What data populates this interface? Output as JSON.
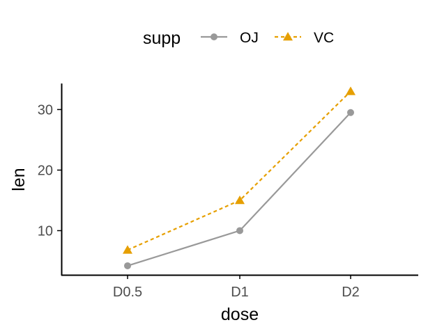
{
  "chart_data": {
    "type": "line",
    "title": "",
    "xlabel": "dose",
    "ylabel": "len",
    "categories": [
      "D0.5",
      "D1",
      "D2"
    ],
    "yticks": [
      10,
      20,
      30
    ],
    "ylim": [
      2.7,
      34.3
    ],
    "grid": false,
    "legend": {
      "title": "supp",
      "position": "top"
    },
    "series": [
      {
        "name": "OJ",
        "values": [
          4.2,
          10.0,
          29.5
        ],
        "color": "#999999",
        "marker": "circle",
        "line_style": "solid"
      },
      {
        "name": "VC",
        "values": [
          6.8,
          15.0,
          33.0
        ],
        "color": "#E69F00",
        "marker": "triangle",
        "line_style": "dashed"
      }
    ]
  }
}
